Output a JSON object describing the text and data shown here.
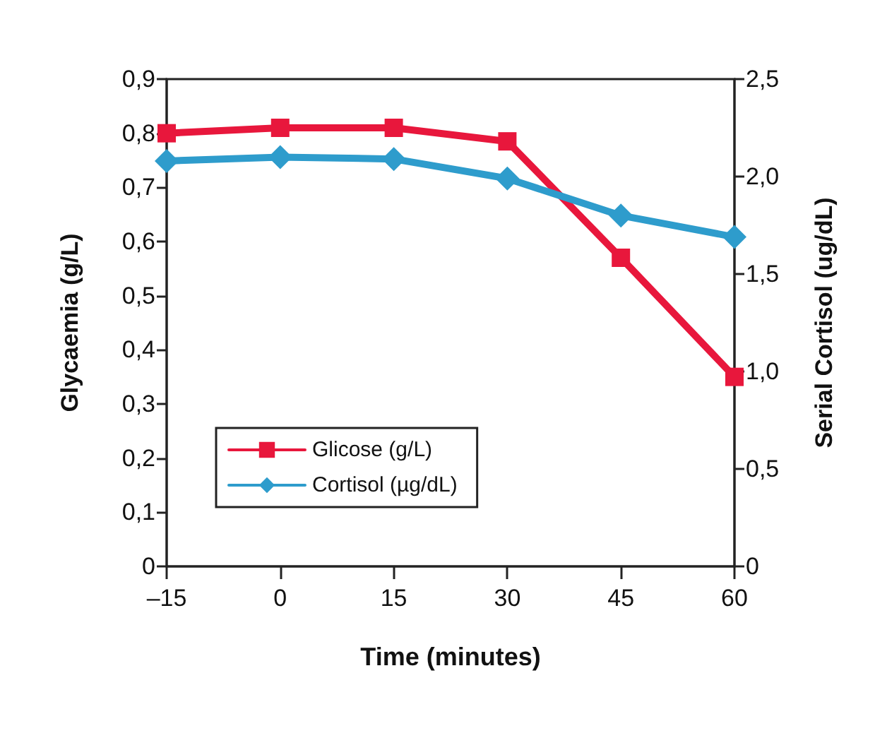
{
  "chart_data": {
    "type": "line",
    "xlabel": "Time (minutes)",
    "ylabel": "Glycaemia (g/L)",
    "y2label": "Serial Cortisol (ug/dL)",
    "x": [
      -15,
      0,
      15,
      30,
      45,
      60
    ],
    "series": [
      {
        "name": "Glicose (g/L)",
        "color": "#e8173c",
        "marker": "square",
        "values": [
          0.8,
          0.81,
          0.81,
          0.785,
          0.57,
          0.35
        ]
      },
      {
        "name": "Cortisol (µg/dL)",
        "color": "#2e9ccc",
        "marker": "diamond",
        "axis": "y2",
        "values": [
          2.08,
          2.1,
          2.09,
          1.99,
          1.8,
          1.69
        ]
      }
    ],
    "xlim": [
      -15,
      60
    ],
    "xticks": [
      {
        "value": -15,
        "label": "–15"
      },
      0,
      15,
      30,
      45,
      60
    ],
    "ylim": [
      0,
      0.9
    ],
    "yticks": [
      0,
      {
        "value": 0.1,
        "label": "0,1"
      },
      {
        "value": 0.2,
        "label": "0,2"
      },
      {
        "value": 0.3,
        "label": "0,3"
      },
      {
        "value": 0.4,
        "label": "0,4"
      },
      {
        "value": 0.5,
        "label": "0,5"
      },
      {
        "value": 0.6,
        "label": "0,6"
      },
      {
        "value": 0.7,
        "label": "0,7"
      },
      {
        "value": 0.8,
        "label": "0,8"
      },
      {
        "value": 0.9,
        "label": "0,9"
      }
    ],
    "y2lim": [
      0,
      2.5
    ],
    "y2ticks": [
      0,
      {
        "value": 0.5,
        "label": "0,5"
      },
      {
        "value": 1,
        "label": "1,0"
      },
      {
        "value": 1.5,
        "label": "1,5"
      },
      {
        "value": 2,
        "label": "2,0"
      },
      {
        "value": 2.5,
        "label": "2,5"
      }
    ],
    "grid": false,
    "legend": "bottom left",
    "line_style": "solid"
  }
}
